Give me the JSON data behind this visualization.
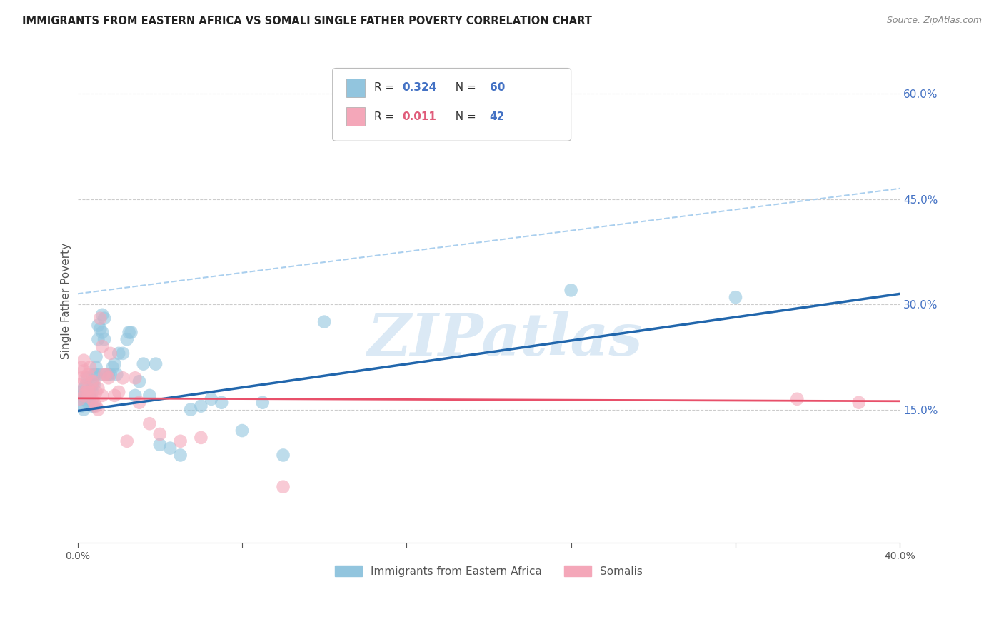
{
  "title": "IMMIGRANTS FROM EASTERN AFRICA VS SOMALI SINGLE FATHER POVERTY CORRELATION CHART",
  "source": "Source: ZipAtlas.com",
  "ylabel": "Single Father Poverty",
  "xlim": [
    0.0,
    0.4
  ],
  "ylim": [
    -0.04,
    0.65
  ],
  "y_ticks_right": [
    0.15,
    0.3,
    0.45,
    0.6
  ],
  "y_tick_labels_right": [
    "15.0%",
    "30.0%",
    "45.0%",
    "60.0%"
  ],
  "watermark": "ZIPatlas",
  "blue_color": "#92c5de",
  "pink_color": "#f4a7b9",
  "blue_line_color": "#2166ac",
  "pink_line_color": "#e8506a",
  "legend_blue_label": "Immigrants from Eastern Africa",
  "legend_pink_label": "Somalis",
  "R_blue": "0.324",
  "N_blue": "60",
  "R_pink": "0.011",
  "N_pink": "42",
  "blue_scatter_x": [
    0.001,
    0.002,
    0.002,
    0.002,
    0.003,
    0.003,
    0.003,
    0.004,
    0.004,
    0.005,
    0.005,
    0.006,
    0.006,
    0.007,
    0.007,
    0.007,
    0.008,
    0.008,
    0.008,
    0.009,
    0.009,
    0.009,
    0.01,
    0.01,
    0.011,
    0.011,
    0.012,
    0.012,
    0.013,
    0.013,
    0.014,
    0.015,
    0.016,
    0.017,
    0.018,
    0.019,
    0.02,
    0.022,
    0.024,
    0.025,
    0.026,
    0.028,
    0.03,
    0.032,
    0.035,
    0.038,
    0.04,
    0.045,
    0.05,
    0.055,
    0.06,
    0.065,
    0.07,
    0.08,
    0.09,
    0.1,
    0.12,
    0.16,
    0.24,
    0.32
  ],
  "blue_scatter_y": [
    0.165,
    0.17,
    0.155,
    0.175,
    0.18,
    0.165,
    0.15,
    0.17,
    0.185,
    0.16,
    0.195,
    0.175,
    0.165,
    0.185,
    0.175,
    0.155,
    0.2,
    0.185,
    0.155,
    0.21,
    0.2,
    0.225,
    0.27,
    0.25,
    0.265,
    0.2,
    0.285,
    0.26,
    0.28,
    0.25,
    0.2,
    0.2,
    0.2,
    0.21,
    0.215,
    0.2,
    0.23,
    0.23,
    0.25,
    0.26,
    0.26,
    0.17,
    0.19,
    0.215,
    0.17,
    0.215,
    0.1,
    0.095,
    0.085,
    0.15,
    0.155,
    0.165,
    0.16,
    0.12,
    0.16,
    0.085,
    0.275,
    0.555,
    0.32,
    0.31
  ],
  "pink_scatter_x": [
    0.001,
    0.001,
    0.002,
    0.002,
    0.003,
    0.003,
    0.003,
    0.004,
    0.004,
    0.005,
    0.005,
    0.005,
    0.006,
    0.006,
    0.007,
    0.007,
    0.008,
    0.008,
    0.009,
    0.009,
    0.01,
    0.01,
    0.011,
    0.012,
    0.012,
    0.013,
    0.014,
    0.015,
    0.016,
    0.018,
    0.02,
    0.022,
    0.024,
    0.028,
    0.03,
    0.035,
    0.04,
    0.05,
    0.06,
    0.1,
    0.35,
    0.38
  ],
  "pink_scatter_y": [
    0.165,
    0.185,
    0.195,
    0.21,
    0.17,
    0.22,
    0.205,
    0.175,
    0.195,
    0.18,
    0.175,
    0.2,
    0.175,
    0.21,
    0.19,
    0.165,
    0.16,
    0.19,
    0.175,
    0.155,
    0.18,
    0.15,
    0.28,
    0.17,
    0.24,
    0.2,
    0.2,
    0.195,
    0.23,
    0.17,
    0.175,
    0.195,
    0.105,
    0.195,
    0.16,
    0.13,
    0.115,
    0.105,
    0.11,
    0.04,
    0.165,
    0.16
  ],
  "blue_line_x0": 0.0,
  "blue_line_x1": 0.4,
  "blue_line_y0": 0.148,
  "blue_line_y1": 0.315,
  "pink_line_x0": 0.0,
  "pink_line_x1": 0.4,
  "pink_line_y0": 0.166,
  "pink_line_y1": 0.162,
  "dash_line_x0": 0.0,
  "dash_line_x1": 0.4,
  "dash_line_y0": 0.315,
  "dash_line_y1": 0.465,
  "background_color": "#ffffff",
  "grid_color": "#cccccc",
  "title_color": "#222222",
  "axis_label_color": "#555555",
  "right_tick_color": "#4472c4",
  "legend_R_color_blue": "#4472c4",
  "legend_R_color_pink": "#e05c7a",
  "legend_N_color": "#4472c4"
}
